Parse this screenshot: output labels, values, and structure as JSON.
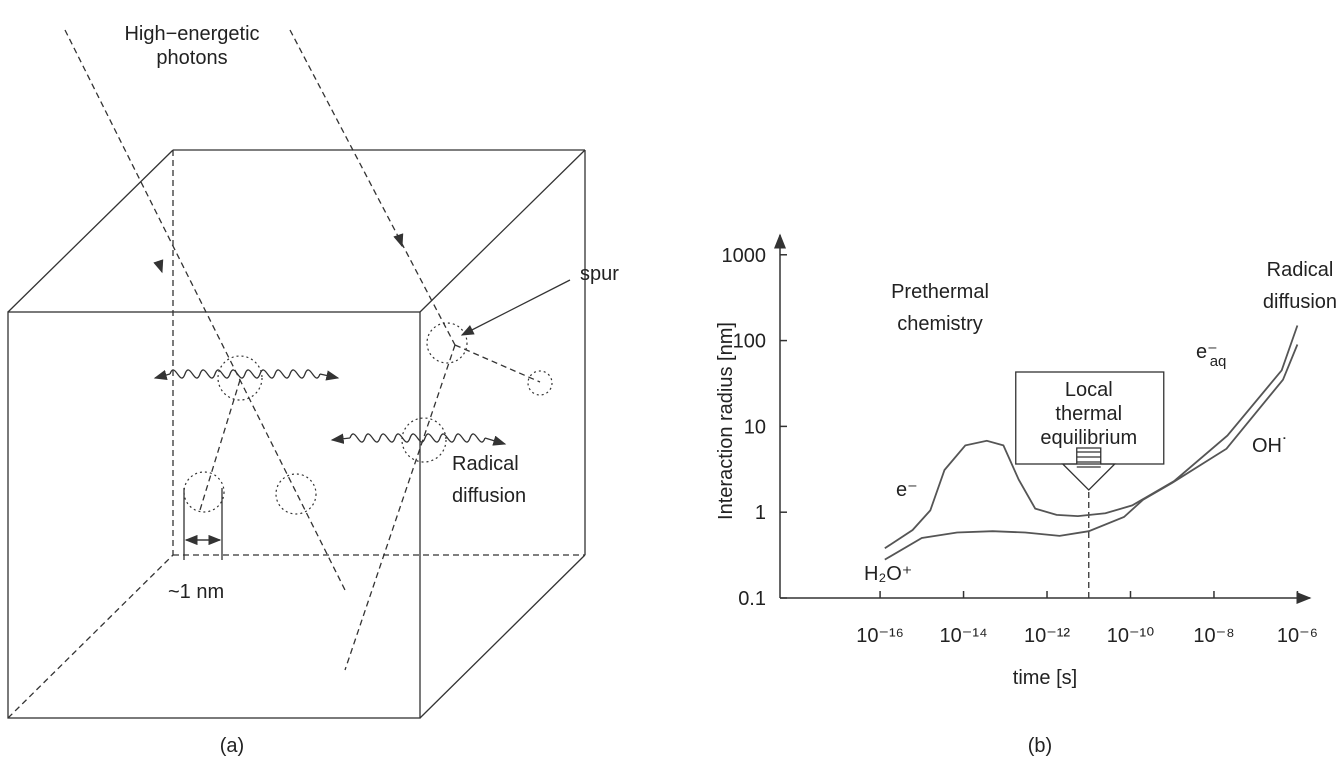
{
  "panel_a": {
    "photons_label": [
      "High−energetic",
      "photons"
    ],
    "spur_label": "spur",
    "diffusion_label": [
      "Radical",
      "diffusion"
    ],
    "scale_label": "~1 nm",
    "caption": "(a)"
  },
  "chart_data": {
    "type": "line",
    "caption": "(b)",
    "xlabel": "time  [s]",
    "ylabel": "Interaction radius  [nm]",
    "xlog": true,
    "ylog": true,
    "xlim": [
      4e-19,
      2e-06
    ],
    "ylim": [
      0.1,
      1300
    ],
    "xticks": [
      {
        "value": 1e-16,
        "label": "10⁻¹⁶"
      },
      {
        "value": 1e-14,
        "label": "10⁻¹⁴"
      },
      {
        "value": 1e-12,
        "label": "10⁻¹²"
      },
      {
        "value": 1e-10,
        "label": "10⁻¹⁰"
      },
      {
        "value": 1e-08,
        "label": "10⁻⁸"
      },
      {
        "value": 1e-06,
        "label": "10⁻⁶"
      }
    ],
    "yticks": [
      0.1,
      1,
      10,
      100,
      1000
    ],
    "region_labels": [
      [
        "Prethermal",
        "chemistry"
      ],
      [
        "Radical",
        "diffusion"
      ]
    ],
    "equilibrium_label": [
      "Local",
      "thermal",
      "equilibrium"
    ],
    "equilibrium_time": 1e-11,
    "curve_labels": [
      {
        "text": "e⁻"
      },
      {
        "text": "H₂O⁺"
      },
      {
        "text": "e⁻",
        "sub": "aq"
      },
      {
        "text": "OH˙"
      }
    ],
    "series": [
      {
        "color": "#555555",
        "x": [
          1.3e-16,
          6e-16,
          1.6e-15,
          3.5e-15,
          1.1e-14,
          3.6e-14,
          9e-14,
          2.1e-13,
          5.2e-13,
          1.7e-12,
          5.5e-12,
          2.5e-11,
          1.1e-10,
          1.1e-09,
          2.1e-08,
          4.2e-07,
          1e-06
        ],
        "values": [
          0.38,
          0.62,
          1.05,
          3.1,
          6,
          6.8,
          6,
          2.4,
          1.1,
          0.93,
          0.9,
          0.97,
          1.2,
          2.3,
          7.8,
          45,
          150
        ]
      },
      {
        "color": "#555555",
        "x": [
          1.3e-16,
          1e-15,
          7e-15,
          5e-14,
          3e-13,
          2e-12,
          1e-11,
          7e-11,
          2e-10,
          1e-09,
          2e-08,
          4.5e-07,
          1e-06
        ],
        "values": [
          0.28,
          0.5,
          0.58,
          0.6,
          0.58,
          0.53,
          0.6,
          0.88,
          1.4,
          2.2,
          5.5,
          35,
          90
        ]
      }
    ]
  }
}
